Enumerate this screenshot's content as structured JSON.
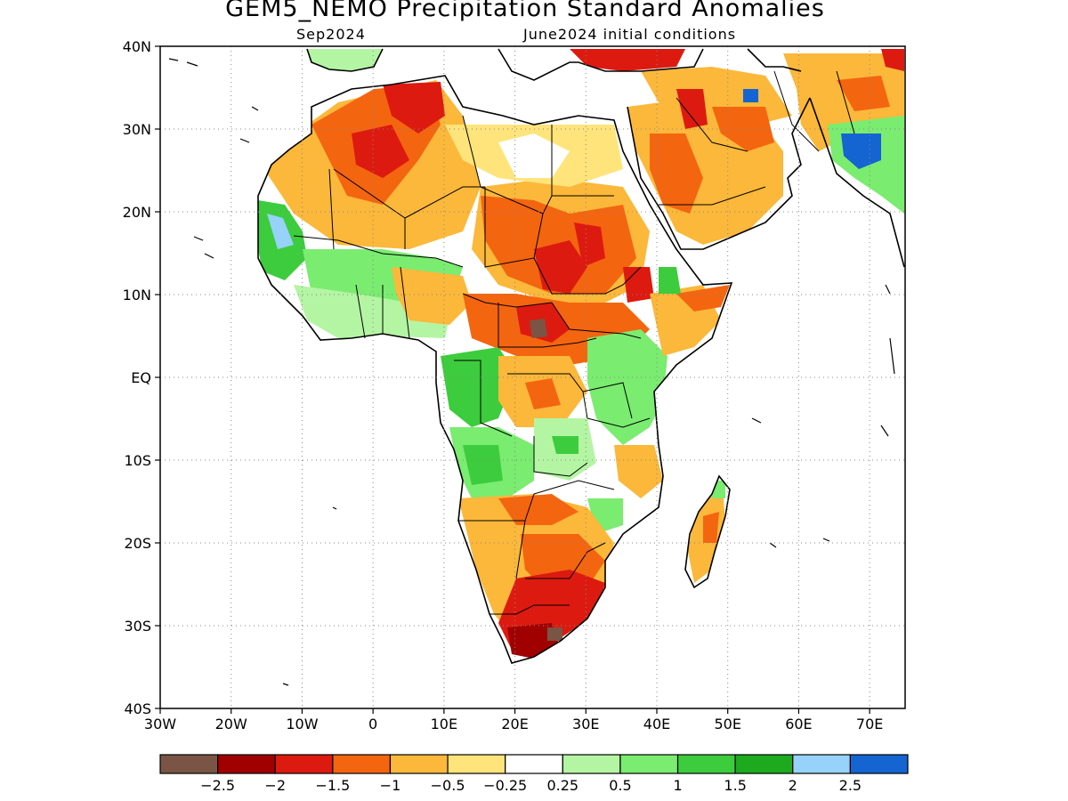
{
  "title": "GEM5_NEMO Precipitation Standard Anomalies",
  "subtitle_left": "Sep2024",
  "subtitle_right": "June2024 initial conditions",
  "map": {
    "lon_range": [
      -30,
      75
    ],
    "lat_range": [
      -40,
      40
    ],
    "lat_ticks": [
      {
        "value": 40,
        "label": "40N"
      },
      {
        "value": 30,
        "label": "30N"
      },
      {
        "value": 20,
        "label": "20N"
      },
      {
        "value": 10,
        "label": "10N"
      },
      {
        "value": 0,
        "label": "EQ"
      },
      {
        "value": -10,
        "label": "10S"
      },
      {
        "value": -20,
        "label": "20S"
      },
      {
        "value": -30,
        "label": "30S"
      },
      {
        "value": -40,
        "label": "40S"
      }
    ],
    "lon_ticks": [
      {
        "value": -30,
        "label": "30W"
      },
      {
        "value": -20,
        "label": "20W"
      },
      {
        "value": -10,
        "label": "10W"
      },
      {
        "value": 0,
        "label": "0"
      },
      {
        "value": 10,
        "label": "10E"
      },
      {
        "value": 20,
        "label": "20E"
      },
      {
        "value": 30,
        "label": "30E"
      },
      {
        "value": 40,
        "label": "40E"
      },
      {
        "value": 50,
        "label": "50E"
      },
      {
        "value": 60,
        "label": "60E"
      },
      {
        "value": 70,
        "label": "70E"
      }
    ],
    "grid": "dotted"
  },
  "colorbar": {
    "colors": [
      "#7a5545",
      "#a00000",
      "#dd1a10",
      "#f46510",
      "#fbb83a",
      "#fee47a",
      "#ffffff",
      "#b4f5a4",
      "#7aec70",
      "#3dcc3d",
      "#1eaa1e",
      "#96d2fa",
      "#1464d2"
    ],
    "labels": [
      "-2.5",
      "-2",
      "-1.5",
      "-1",
      "-0.5",
      "-0.25",
      "0.25",
      "0.5",
      "1",
      "1.5",
      "2",
      "2.5"
    ]
  },
  "regions": [
    {
      "name": "sahara-west",
      "color": "#fbb83a"
    },
    {
      "name": "sahara-east",
      "color": "#fbb83a"
    },
    {
      "name": "libya-egypt",
      "color": "#fee47a"
    },
    {
      "name": "arabia",
      "color": "#fbb83a"
    },
    {
      "name": "west-africa-wet",
      "color": "#7aec70"
    },
    {
      "name": "guinea-coast",
      "color": "#b4f5a4"
    },
    {
      "name": "sahel-dry",
      "color": "#f46510"
    },
    {
      "name": "sudan-dry",
      "color": "#dd1a10"
    },
    {
      "name": "congo-wet",
      "color": "#7aec70"
    },
    {
      "name": "east-africa-wet",
      "color": "#7aec70"
    },
    {
      "name": "angola-wet",
      "color": "#7aec70"
    },
    {
      "name": "southern-africa",
      "color": "#fbb83a"
    },
    {
      "name": "south-africa-dry",
      "color": "#dd1a10"
    },
    {
      "name": "madagascar",
      "color": "#fbb83a"
    },
    {
      "name": "pakistan-wet",
      "color": "#1464d2"
    }
  ]
}
